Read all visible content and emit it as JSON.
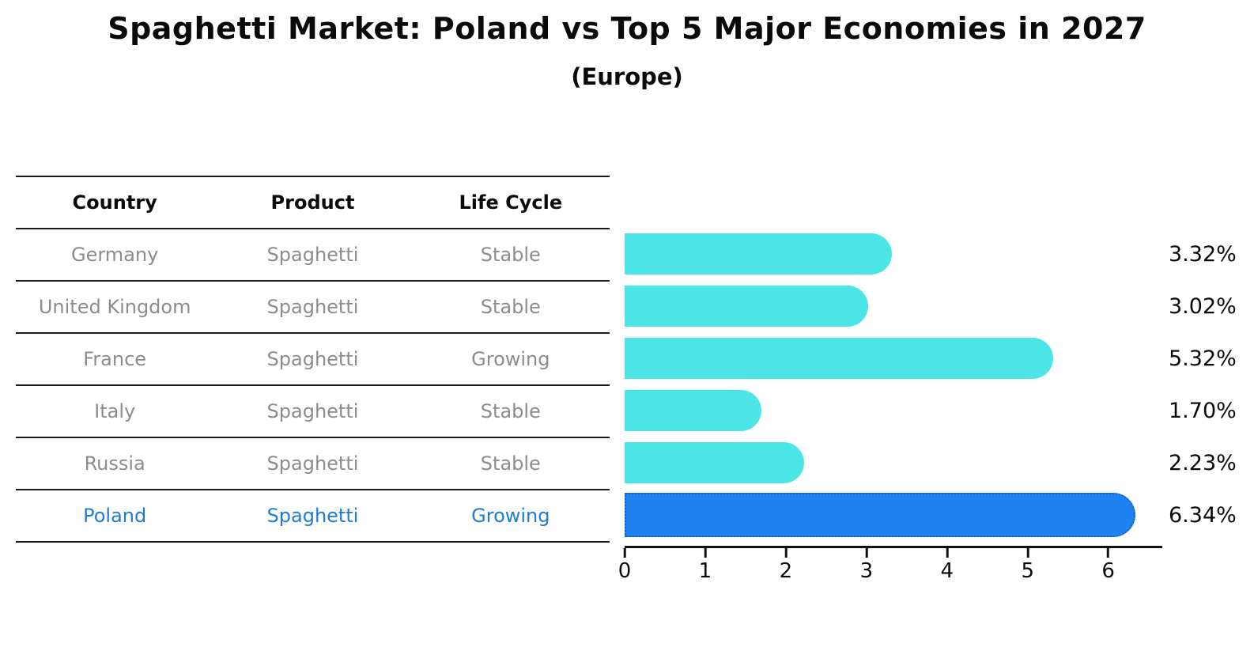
{
  "title": "Spaghetti Market: Poland vs Top 5 Major Economies in 2027",
  "subtitle": "(Europe)",
  "table": {
    "headers": {
      "country": "Country",
      "product": "Product",
      "life_cycle": "Life Cycle"
    },
    "rows": [
      {
        "country": "Germany",
        "product": "Spaghetti",
        "life_cycle": "Stable",
        "highlight": false
      },
      {
        "country": "United Kingdom",
        "product": "Spaghetti",
        "life_cycle": "Stable",
        "highlight": false
      },
      {
        "country": "France",
        "product": "Spaghetti",
        "life_cycle": "Growing",
        "highlight": false
      },
      {
        "country": "Italy",
        "product": "Spaghetti",
        "life_cycle": "Stable",
        "highlight": false
      },
      {
        "country": "Russia",
        "product": "Spaghetti",
        "life_cycle": "Stable",
        "highlight": false
      },
      {
        "country": "Poland",
        "product": "Spaghetti",
        "life_cycle": "Growing",
        "highlight": true
      }
    ]
  },
  "chart_data": {
    "type": "bar",
    "orientation": "horizontal",
    "title": "Spaghetti Market: Poland vs Top 5 Major Economies in 2027",
    "subtitle": "(Europe)",
    "categories": [
      "Germany",
      "United Kingdom",
      "France",
      "Italy",
      "Russia",
      "Poland"
    ],
    "values": [
      3.32,
      3.02,
      5.32,
      1.7,
      2.23,
      6.34
    ],
    "value_labels": [
      "3.32%",
      "3.02%",
      "5.32%",
      "1.70%",
      "2.23%",
      "6.34%"
    ],
    "unit": "%",
    "xlabel": "",
    "ylabel": "",
    "xticks": [
      "0",
      "1",
      "2",
      "3",
      "4",
      "5",
      "6"
    ],
    "xlim": [
      0,
      6.67
    ],
    "grid": false,
    "legend": false,
    "highlight_index": 5,
    "bar_color": "#4CE6E6",
    "highlight_color": "#1E82F0",
    "highlight_border_color": "#1565C0",
    "highlight_text_color": "#1E7BD6",
    "text_color": "#8c8c8c"
  }
}
